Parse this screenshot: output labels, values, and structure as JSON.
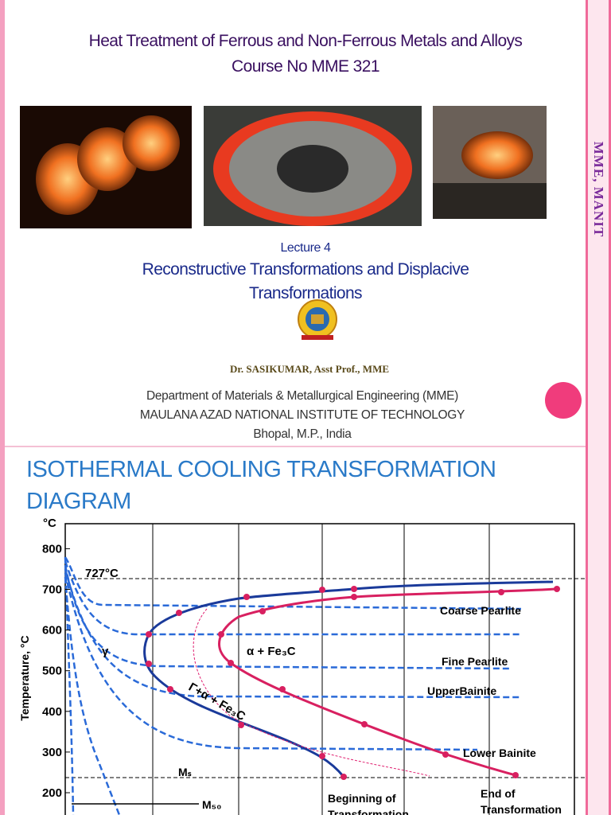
{
  "header": {
    "title_line1": "Heat Treatment of Ferrous and Non-Ferrous Metals and Alloys",
    "title_line2": "Course No MME 321"
  },
  "lecture": {
    "number": "Lecture 4",
    "title_line1": "Reconstructive Transformations and Displacive",
    "title_line2": "Transformations"
  },
  "author": "Dr. SASIKUMAR, Asst Prof., MME",
  "affiliation": [
    "Department of Materials & Metallurgical Engineering  (MME)",
    "MAULANA  AZAD NATIONAL INSTITUTE OF TECHNOLOGY",
    "Bhopal, M.P., India"
  ],
  "sidebar": "MME, MANIT",
  "slide2": {
    "title_line1": "ISOTHERMAL COOLING TRANSFORMATION",
    "title_line2": "DIAGRAM",
    "diagram": {
      "unit": "°C",
      "y_label": "Temperature, °C",
      "yticks": [
        800,
        700,
        600,
        500,
        400,
        300,
        200
      ],
      "labels": {
        "eutectoid": "727°C",
        "coarse": "Coarse Pearlite",
        "fine": "Fine Pearlite",
        "upper": "UpperBainite",
        "lower": "Lower Bainite",
        "alpha": "α + Fe₃C",
        "gamma": "γ",
        "mixed": "Γ+α + Fe₃C",
        "ms": "Mₛ",
        "m50": "M₅₀",
        "begin1": "Beginning of",
        "begin2": "Transformation",
        "end1": "End of",
        "end2": "Transformation"
      }
    }
  }
}
